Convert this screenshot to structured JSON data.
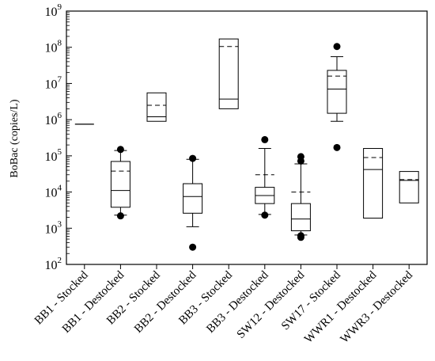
{
  "chart_data": {
    "type": "box",
    "y_scale": "log",
    "ylim": [
      100,
      1000000000
    ],
    "y_ticks": [
      {
        "value": 100,
        "base": "10",
        "exp": "2"
      },
      {
        "value": 1000,
        "base": "10",
        "exp": "3"
      },
      {
        "value": 10000,
        "base": "10",
        "exp": "4"
      },
      {
        "value": 100000,
        "base": "10",
        "exp": "5"
      },
      {
        "value": 1000000,
        "base": "10",
        "exp": "6"
      },
      {
        "value": 10000000,
        "base": "10",
        "exp": "7"
      },
      {
        "value": 100000000,
        "base": "10",
        "exp": "8"
      },
      {
        "value": 1000000000,
        "base": "10",
        "exp": "9"
      }
    ],
    "ylabel": "BoBac (copies/L)",
    "xlabel": "",
    "title": "",
    "legend": "none",
    "grid": false,
    "categories": [
      "BB1 - Stocked",
      "BB1 - Destocked",
      "BB2 - Stocked",
      "BB2 - Destocked",
      "BB3 - Stocked",
      "BB3 - Destocked",
      "SW12 - Destocked",
      "SW17 - Stocked",
      "WWR1 - Destocked",
      "WWR3 - Destocked"
    ],
    "boxes": [
      {
        "q1": 750000,
        "median": 750000,
        "q3": 750000,
        "mean": null,
        "whisker_low": null,
        "whisker_high": null,
        "outliers": []
      },
      {
        "q1": 3800,
        "median": 11000,
        "q3": 70000,
        "mean": 38000,
        "whisker_low": 2300,
        "whisker_high": 140000,
        "outliers": [
          2200,
          150000
        ]
      },
      {
        "q1": 900000,
        "median": 1200000,
        "q3": 5500000,
        "mean": 2500000,
        "whisker_low": null,
        "whisker_high": null,
        "outliers": []
      },
      {
        "q1": 2600,
        "median": 7500,
        "q3": 17000,
        "mean": 17000,
        "whisker_low": 1100,
        "whisker_high": 80000,
        "outliers": [
          300,
          85000
        ]
      },
      {
        "q1": 2000000,
        "median": 3700000,
        "q3": 170000000,
        "mean": 105000000,
        "whisker_low": null,
        "whisker_high": null,
        "outliers": []
      },
      {
        "q1": 4800,
        "median": 8000,
        "q3": 13500,
        "mean": 30000,
        "whisker_low": 2400,
        "whisker_high": 160000,
        "outliers": [
          2300,
          280000
        ]
      },
      {
        "q1": 850,
        "median": 1800,
        "q3": 4800,
        "mean": 10000,
        "whisker_low": 650,
        "whisker_high": 60000,
        "outliers": [
          560,
          620,
          72000,
          95000
        ]
      },
      {
        "q1": 1500000,
        "median": 7000000,
        "q3": 23000000,
        "mean": 16000000,
        "whisker_low": 900000,
        "whisker_high": 55000000,
        "outliers": [
          170000,
          105000000
        ]
      },
      {
        "q1": 1900,
        "median": 42000,
        "q3": 160000,
        "mean": 90000,
        "whisker_low": null,
        "whisker_high": null,
        "outliers": []
      },
      {
        "q1": 5000,
        "median": 21000,
        "q3": 37000,
        "mean": 22000,
        "whisker_low": null,
        "whisker_high": null,
        "outliers": []
      }
    ]
  }
}
